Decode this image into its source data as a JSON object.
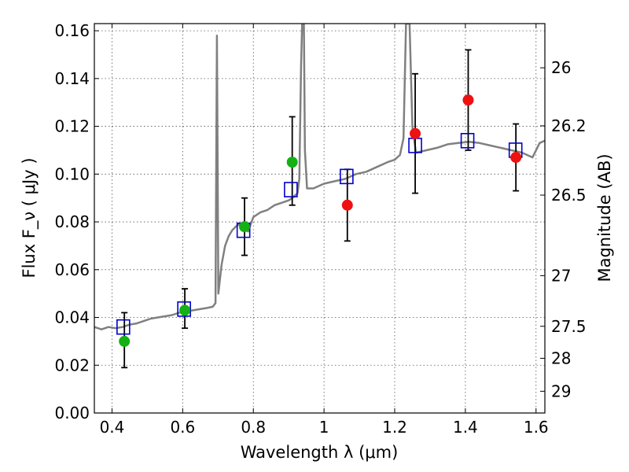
{
  "chart_data": {
    "type": "scatter",
    "title": "",
    "xlabel": "Wavelength  λ (μm)",
    "ylabel": "Flux  F_ν  ( μJy )",
    "y2label": "Magnitude (AB)",
    "xlim": [
      0.35,
      1.625
    ],
    "ylim": [
      0.0,
      0.163
    ],
    "grid": true,
    "x_ticks": [
      0.4,
      0.6,
      0.8,
      1.0,
      1.2,
      1.4,
      1.6
    ],
    "x_tick_labels": [
      "0.4",
      "0.6",
      "0.8",
      "1",
      "1.2",
      "1.4",
      "1.6"
    ],
    "y_ticks": [
      0.0,
      0.02,
      0.04,
      0.06,
      0.08,
      0.1,
      0.12,
      0.14,
      0.16
    ],
    "y_tick_labels": [
      "0.00",
      "0.02",
      "0.04",
      "0.06",
      "0.08",
      "0.10",
      "0.12",
      "0.14",
      "0.16"
    ],
    "y2_ticks": [
      {
        "label": "26",
        "flux": 0.1445
      },
      {
        "label": "26.2",
        "flux": 0.1202
      },
      {
        "label": "26.5",
        "flux": 0.0912
      },
      {
        "label": "27",
        "flux": 0.0575
      },
      {
        "label": "27.5",
        "flux": 0.0363
      },
      {
        "label": "28",
        "flux": 0.0229
      },
      {
        "label": "29",
        "flux": 0.0091
      }
    ],
    "colors": {
      "model": "#808080",
      "green": "#14b014",
      "red": "#ee1111",
      "square": "#0000cc",
      "errorbar": "#000000"
    },
    "series": [
      {
        "kind": "model_spectrum",
        "points": [
          [
            0.35,
            0.036
          ],
          [
            0.37,
            0.035
          ],
          [
            0.39,
            0.036
          ],
          [
            0.41,
            0.0355
          ],
          [
            0.43,
            0.036
          ],
          [
            0.45,
            0.037
          ],
          [
            0.47,
            0.0375
          ],
          [
            0.49,
            0.0385
          ],
          [
            0.51,
            0.0395
          ],
          [
            0.53,
            0.04
          ],
          [
            0.55,
            0.0405
          ],
          [
            0.57,
            0.041
          ],
          [
            0.59,
            0.042
          ],
          [
            0.61,
            0.0425
          ],
          [
            0.63,
            0.043
          ],
          [
            0.65,
            0.0435
          ],
          [
            0.67,
            0.044
          ],
          [
            0.685,
            0.0445
          ],
          [
            0.693,
            0.046
          ],
          [
            0.697,
            0.158
          ],
          [
            0.701,
            0.05
          ],
          [
            0.71,
            0.062
          ],
          [
            0.72,
            0.07
          ],
          [
            0.73,
            0.074
          ],
          [
            0.74,
            0.0765
          ],
          [
            0.75,
            0.078
          ],
          [
            0.76,
            0.079
          ],
          [
            0.775,
            0.078
          ],
          [
            0.785,
            0.076
          ],
          [
            0.8,
            0.082
          ],
          [
            0.82,
            0.084
          ],
          [
            0.84,
            0.085
          ],
          [
            0.86,
            0.087
          ],
          [
            0.88,
            0.088
          ],
          [
            0.9,
            0.089
          ],
          [
            0.91,
            0.09
          ],
          [
            0.925,
            0.092
          ],
          [
            0.93,
            0.098
          ],
          [
            0.935,
            0.145
          ],
          [
            0.938,
            0.163
          ],
          [
            0.943,
            0.163
          ],
          [
            0.946,
            0.11
          ],
          [
            0.952,
            0.094
          ],
          [
            0.97,
            0.094
          ],
          [
            1.0,
            0.096
          ],
          [
            1.03,
            0.097
          ],
          [
            1.06,
            0.098
          ],
          [
            1.09,
            0.1
          ],
          [
            1.12,
            0.101
          ],
          [
            1.15,
            0.103
          ],
          [
            1.18,
            0.105
          ],
          [
            1.2,
            0.106
          ],
          [
            1.215,
            0.108
          ],
          [
            1.225,
            0.115
          ],
          [
            1.232,
            0.163
          ],
          [
            1.242,
            0.163
          ],
          [
            1.25,
            0.12
          ],
          [
            1.26,
            0.109
          ],
          [
            1.29,
            0.11
          ],
          [
            1.32,
            0.111
          ],
          [
            1.35,
            0.1125
          ],
          [
            1.38,
            0.113
          ],
          [
            1.41,
            0.1135
          ],
          [
            1.44,
            0.113
          ],
          [
            1.47,
            0.112
          ],
          [
            1.5,
            0.111
          ],
          [
            1.53,
            0.11
          ],
          [
            1.56,
            0.109
          ],
          [
            1.59,
            0.107
          ],
          [
            1.61,
            0.113
          ],
          [
            1.625,
            0.114
          ]
        ]
      },
      {
        "kind": "green_points",
        "points": [
          {
            "x": 0.435,
            "y": 0.03,
            "ylo": 0.019,
            "yhi": 0.042
          },
          {
            "x": 0.606,
            "y": 0.043,
            "ylo": 0.0355,
            "yhi": 0.052
          },
          {
            "x": 0.775,
            "y": 0.078,
            "ylo": 0.066,
            "yhi": 0.09
          },
          {
            "x": 0.91,
            "y": 0.105,
            "ylo": 0.087,
            "yhi": 0.124
          }
        ]
      },
      {
        "kind": "red_points",
        "points": [
          {
            "x": 1.066,
            "y": 0.087,
            "ylo": 0.072,
            "yhi": 0.102
          },
          {
            "x": 1.258,
            "y": 0.117,
            "ylo": 0.092,
            "yhi": 0.142
          },
          {
            "x": 1.408,
            "y": 0.131,
            "ylo": 0.11,
            "yhi": 0.152
          },
          {
            "x": 1.543,
            "y": 0.107,
            "ylo": 0.093,
            "yhi": 0.121
          }
        ]
      },
      {
        "kind": "model_squares",
        "points": [
          {
            "x": 0.432,
            "y": 0.036
          },
          {
            "x": 0.604,
            "y": 0.0435
          },
          {
            "x": 0.772,
            "y": 0.0765
          },
          {
            "x": 0.906,
            "y": 0.0935
          },
          {
            "x": 1.064,
            "y": 0.099
          },
          {
            "x": 1.258,
            "y": 0.112
          },
          {
            "x": 1.406,
            "y": 0.114
          },
          {
            "x": 1.542,
            "y": 0.11
          }
        ]
      }
    ]
  }
}
